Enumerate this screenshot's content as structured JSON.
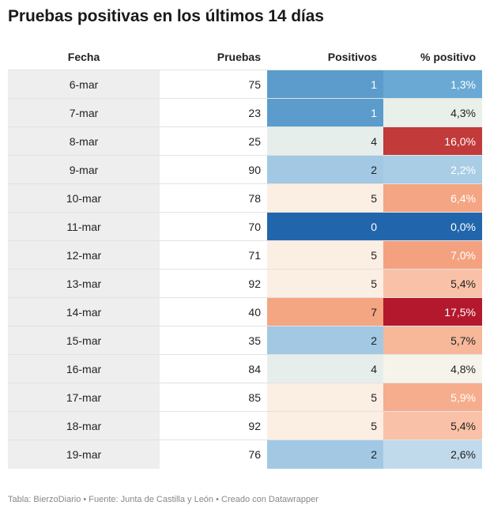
{
  "title": "Pruebas positivas en los últimos 14 días",
  "footer": "Tabla: BierzoDiario • Fuente: Junta de Castilla y León • Creado con Datawrapper",
  "chart_data": {
    "type": "table",
    "columns": [
      "Fecha",
      "Pruebas",
      "Positivos",
      "% positivo"
    ],
    "rows": [
      {
        "fecha": "6-mar",
        "pruebas": "75",
        "positivos": "1",
        "pct": "1,3%",
        "pos_bg": "#5b9ccc",
        "pos_fg": "#ffffff",
        "pct_bg": "#69a9d4",
        "pct_fg": "#ffffff"
      },
      {
        "fecha": "7-mar",
        "pruebas": "23",
        "positivos": "1",
        "pct": "4,3%",
        "pos_bg": "#5b9ccc",
        "pos_fg": "#ffffff",
        "pct_bg": "#e9efe9",
        "pct_fg": "#222222"
      },
      {
        "fecha": "8-mar",
        "pruebas": "25",
        "positivos": "4",
        "pct": "16,0%",
        "pos_bg": "#e6eeec",
        "pos_fg": "#222222",
        "pct_bg": "#c23a3a",
        "pct_fg": "#ffffff"
      },
      {
        "fecha": "9-mar",
        "pruebas": "90",
        "positivos": "2",
        "pct": "2,2%",
        "pos_bg": "#a2c8e3",
        "pos_fg": "#222222",
        "pct_bg": "#a9cde5",
        "pct_fg": "#ffffff"
      },
      {
        "fecha": "10-mar",
        "pruebas": "78",
        "positivos": "5",
        "pct": "6,4%",
        "pos_bg": "#fbeee2",
        "pos_fg": "#222222",
        "pct_bg": "#f4a583",
        "pct_fg": "#ffffff"
      },
      {
        "fecha": "11-mar",
        "pruebas": "70",
        "positivos": "0",
        "pct": "0,0%",
        "pos_bg": "#2166ac",
        "pos_fg": "#ffffff",
        "pct_bg": "#2166ac",
        "pct_fg": "#ffffff"
      },
      {
        "fecha": "12-mar",
        "pruebas": "71",
        "positivos": "5",
        "pct": "7,0%",
        "pos_bg": "#fbeee2",
        "pos_fg": "#222222",
        "pct_bg": "#f4a180",
        "pct_fg": "#ffffff"
      },
      {
        "fecha": "13-mar",
        "pruebas": "92",
        "positivos": "5",
        "pct": "5,4%",
        "pos_bg": "#fbeee2",
        "pos_fg": "#222222",
        "pct_bg": "#f9c2a8",
        "pct_fg": "#222222"
      },
      {
        "fecha": "14-mar",
        "pruebas": "40",
        "positivos": "7",
        "pct": "17,5%",
        "pos_bg": "#f4a582",
        "pos_fg": "#222222",
        "pct_bg": "#b4182d",
        "pct_fg": "#ffffff"
      },
      {
        "fecha": "15-mar",
        "pruebas": "35",
        "positivos": "2",
        "pct": "5,7%",
        "pos_bg": "#a2c8e3",
        "pos_fg": "#222222",
        "pct_bg": "#f7b89a",
        "pct_fg": "#222222"
      },
      {
        "fecha": "16-mar",
        "pruebas": "84",
        "positivos": "4",
        "pct": "4,8%",
        "pos_bg": "#e6eeec",
        "pos_fg": "#222222",
        "pct_bg": "#f6f4ea",
        "pct_fg": "#222222"
      },
      {
        "fecha": "17-mar",
        "pruebas": "85",
        "positivos": "5",
        "pct": "5,9%",
        "pos_bg": "#fbeee2",
        "pos_fg": "#222222",
        "pct_bg": "#f6ad8d",
        "pct_fg": "#ffffff"
      },
      {
        "fecha": "18-mar",
        "pruebas": "92",
        "positivos": "5",
        "pct": "5,4%",
        "pos_bg": "#fbeee2",
        "pos_fg": "#222222",
        "pct_bg": "#f9c2a8",
        "pct_fg": "#222222"
      },
      {
        "fecha": "19-mar",
        "pruebas": "76",
        "positivos": "2",
        "pct": "2,6%",
        "pos_bg": "#a2c8e3",
        "pos_fg": "#222222",
        "pct_bg": "#c1daeb",
        "pct_fg": "#222222"
      }
    ]
  }
}
